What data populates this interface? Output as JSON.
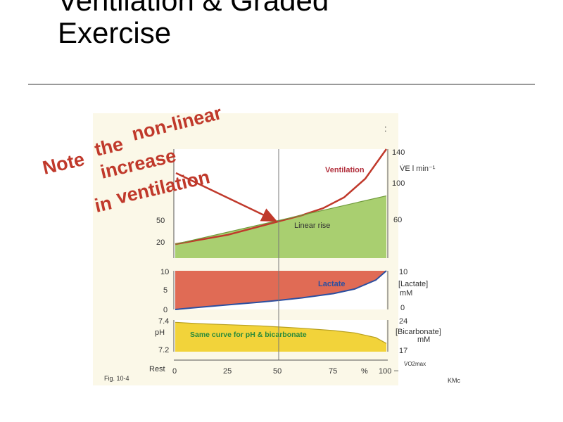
{
  "slide": {
    "title_line1": "Ventilation & Graded",
    "title_line2": "Exercise",
    "annotation": {
      "words": [
        "Note",
        "the",
        "non-linear",
        "increase",
        "in",
        "ventilation"
      ],
      "color": "#c0392b"
    }
  },
  "figure": {
    "fig_label": "Fig. 10-4",
    "credit": "KMc",
    "colon_mark": ":",
    "x_axis": {
      "rest_label": "Rest",
      "ticks": [
        "0",
        "25",
        "50",
        "75",
        "100"
      ],
      "unit": "%",
      "dash": "–",
      "vo2_label": "V̇O2max"
    }
  },
  "chart_data": [
    {
      "type": "area",
      "panel": "ventilation",
      "left_ticks": [
        "50",
        "20"
      ],
      "right_ticks": [
        "140",
        "100",
        "60"
      ],
      "ylabel": "V̇E l min⁻¹",
      "series": [
        {
          "name": "Ventilation",
          "color": "#c0392b",
          "x": [
            0,
            25,
            50,
            60,
            70,
            80,
            90,
            100
          ],
          "y": [
            28,
            40,
            58,
            65,
            74,
            88,
            112,
            150
          ]
        },
        {
          "name": "Linear rise",
          "color": "#a9cf70",
          "x": [
            0,
            100
          ],
          "y": [
            28,
            90
          ]
        }
      ],
      "ylim": [
        10,
        150
      ]
    },
    {
      "type": "area",
      "panel": "lactate",
      "left_ticks": [
        "10",
        "5",
        "0"
      ],
      "right_ticks": [
        "10",
        "0"
      ],
      "ylabel": "[Lactate] mM",
      "series": [
        {
          "name": "Lactate",
          "color": "#e06b55",
          "x": [
            0,
            10,
            25,
            40,
            50,
            60,
            75,
            85,
            95,
            100
          ],
          "y": [
            0.0,
            0.5,
            1.2,
            1.9,
            2.4,
            3.0,
            4.1,
            5.3,
            7.6,
            10.0
          ]
        }
      ],
      "ylim": [
        0,
        10
      ]
    },
    {
      "type": "area",
      "panel": "ph_bicarbonate",
      "left_ticks": [
        "7.4",
        "7.2"
      ],
      "right_ticks": [
        "24",
        "17"
      ],
      "left_label": "pH",
      "right_label": "[Bicarbonate] mM",
      "series": [
        {
          "name": "Same curve for pH & bicarbonate",
          "color": "#f2d33a",
          "x": [
            0,
            10,
            25,
            40,
            50,
            60,
            75,
            85,
            95,
            100
          ],
          "y": [
            7.4,
            7.39,
            7.38,
            7.37,
            7.36,
            7.35,
            7.33,
            7.31,
            7.27,
            7.22
          ]
        }
      ],
      "ylim": [
        7.15,
        7.42
      ]
    }
  ]
}
